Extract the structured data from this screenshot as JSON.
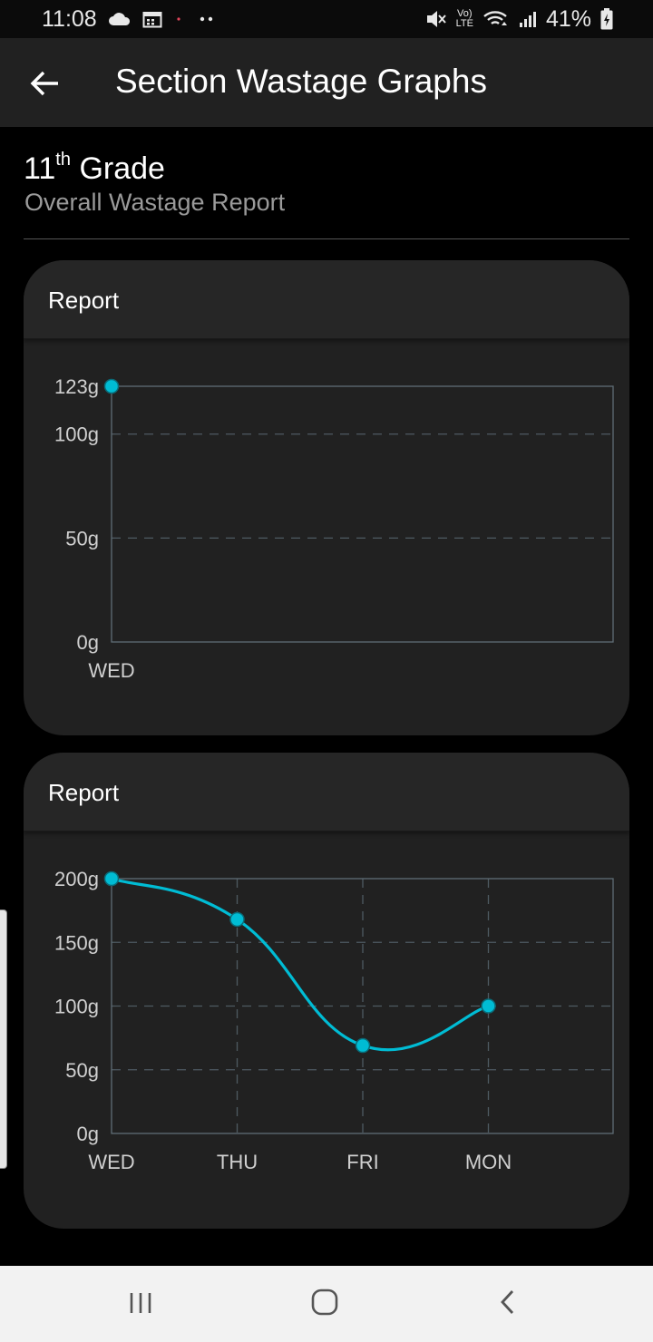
{
  "status_bar": {
    "time": "11:08",
    "volte_top": "Vo)",
    "volte_bottom": "LTE",
    "battery": "41%",
    "icons": [
      "cloud-icon",
      "calendar-icon",
      "notification-dots-icon",
      "mute-icon",
      "wifi-icon",
      "signal-icon",
      "battery-charging-icon"
    ]
  },
  "app_bar": {
    "title": "Section Wastage Graphs",
    "back_icon": "arrow-left-icon"
  },
  "header": {
    "grade_number": "11",
    "grade_suffix": "th",
    "grade_word": "Grade",
    "subtitle": "Overall Wastage Report"
  },
  "cards": [
    {
      "title": "Report"
    },
    {
      "title": "Report"
    }
  ],
  "chart_data": [
    {
      "type": "line",
      "categories": [
        "WED"
      ],
      "series": [
        {
          "values": [
            123
          ]
        }
      ],
      "ylim": [
        0,
        123
      ],
      "yticks": [
        "0g",
        "50g",
        "100g",
        "123g"
      ],
      "ytick_values": [
        0,
        50,
        100,
        123
      ],
      "grid": "horizontal-dashed",
      "color": "#00bcd4"
    },
    {
      "type": "line",
      "categories": [
        "WED",
        "THU",
        "FRI",
        "MON"
      ],
      "series": [
        {
          "values": [
            200,
            168,
            69,
            100
          ]
        }
      ],
      "ylim": [
        0,
        200
      ],
      "yticks": [
        "0g",
        "50g",
        "100g",
        "150g",
        "200g"
      ],
      "ytick_values": [
        0,
        50,
        100,
        150,
        200
      ],
      "grid": "both-dashed",
      "color": "#00bcd4"
    }
  ],
  "nav_bar": {
    "icons": [
      "recent-apps-icon",
      "home-icon",
      "back-icon"
    ]
  }
}
